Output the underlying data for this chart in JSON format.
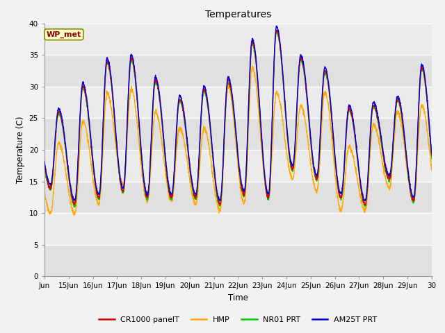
{
  "title": "Temperatures",
  "xlabel": "Time",
  "ylabel": "Temperature (C)",
  "ylim": [
    0,
    40
  ],
  "yticks": [
    0,
    5,
    10,
    15,
    20,
    25,
    30,
    35,
    40
  ],
  "n_days": 16,
  "annotation": "WP_met",
  "colors": {
    "CR1000": "#dd0000",
    "HMP": "#ffaa00",
    "NR01": "#00cc00",
    "AM25T": "#0000dd"
  },
  "legend_labels": [
    "CR1000 panelT",
    "HMP",
    "NR01 PRT",
    "AM25T PRT"
  ],
  "plot_bg": "#e8e8e8",
  "fig_bg": "#f2f2f2",
  "line_width": 1.0,
  "daily_peaks_cr": [
    26.0,
    30.0,
    34.0,
    34.5,
    31.0,
    28.0,
    29.5,
    31.0,
    37.0,
    39.0,
    34.5,
    32.5,
    26.5,
    27.0,
    28.0,
    33.0
  ],
  "daily_mins_cr": [
    14.0,
    11.5,
    12.5,
    13.5,
    12.5,
    12.5,
    12.5,
    11.5,
    13.0,
    12.5,
    17.0,
    15.5,
    12.5,
    11.5,
    15.5,
    12.0
  ],
  "daily_peaks_hmp": [
    21.0,
    24.5,
    29.0,
    29.5,
    26.0,
    23.5,
    23.5,
    30.0,
    33.0,
    29.0,
    27.0,
    29.0,
    20.5,
    24.0,
    26.0,
    27.0
  ],
  "daily_mins_hmp": [
    10.0,
    10.0,
    11.5,
    14.5,
    12.0,
    12.0,
    11.5,
    10.5,
    11.5,
    12.5,
    15.5,
    13.5,
    10.5,
    10.5,
    14.0,
    12.0
  ],
  "samples_per_day": 144,
  "peak_hour": 14,
  "min_hour": 6
}
